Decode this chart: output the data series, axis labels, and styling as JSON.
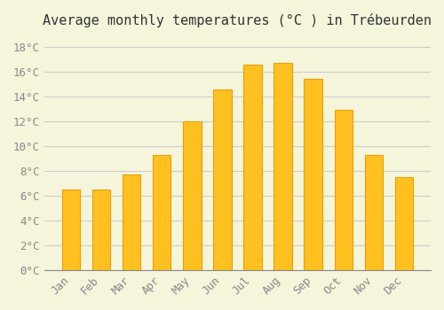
{
  "title": "Average monthly temperatures (°C ) in Trébeurden",
  "months": [
    "Jan",
    "Feb",
    "Mar",
    "Apr",
    "May",
    "Jun",
    "Jul",
    "Aug",
    "Sep",
    "Oct",
    "Nov",
    "Dec"
  ],
  "values": [
    6.5,
    6.5,
    7.7,
    9.3,
    12.0,
    14.6,
    16.6,
    16.7,
    15.4,
    12.9,
    9.3,
    7.5
  ],
  "bar_color": "#FFC020",
  "bar_edge_color": "#E8A000",
  "background_color": "#F5F5DC",
  "grid_color": "#CCCCCC",
  "text_color": "#888888",
  "ylim": [
    0,
    19
  ],
  "ytick_step": 2,
  "title_fontsize": 11,
  "tick_fontsize": 9,
  "font_family": "monospace"
}
